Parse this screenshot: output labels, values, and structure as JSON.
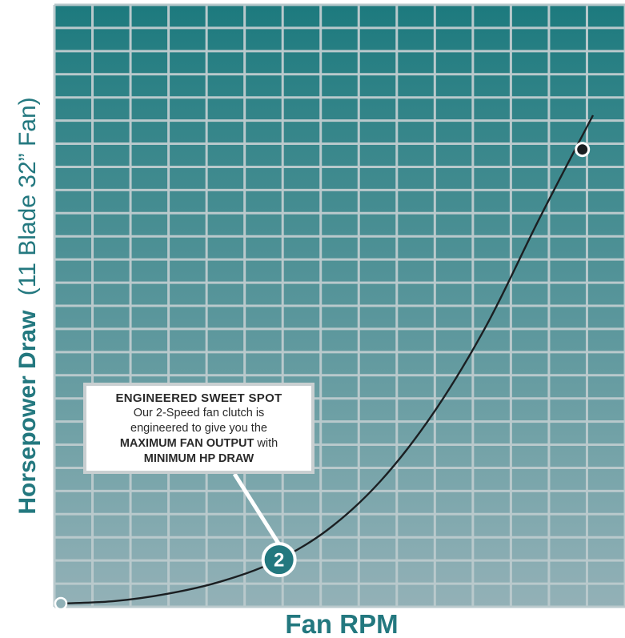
{
  "chart_data": {
    "type": "line",
    "xlabel": "Fan RPM",
    "ylabel_bold": "Horsepower Draw",
    "ylabel_regular": "(11 Blade 32” Fan)",
    "grid": true,
    "series": [
      {
        "x": [
          0.0,
          0.1,
          0.2,
          0.3,
          0.4,
          0.5,
          0.6,
          0.7,
          0.8,
          0.9,
          1.0
        ],
        "y": [
          0.0,
          0.005,
          0.02,
          0.045,
          0.085,
          0.15,
          0.25,
          0.39,
          0.57,
          0.79,
          1.0
        ]
      }
    ],
    "markers": [
      {
        "name": "start-point",
        "x": 0.0,
        "y": 0.0
      },
      {
        "name": "sweet-spot",
        "x": 0.41,
        "y": 0.09,
        "label": "2"
      },
      {
        "name": "max-point",
        "x": 0.98,
        "y": 0.93
      }
    ]
  },
  "callout": {
    "heading": "ENGINEERED SWEET SPOT",
    "line1": "Our 2-Speed fan clutch is",
    "line2": "engineered to give you the",
    "line3_bold": "MAXIMUM FAN OUTPUT",
    "line3_rest": " with",
    "line4_bold": "MINIMUM HP DRAW"
  },
  "colors": {
    "grid_top": "#1d7a7e",
    "grid_bottom": "#93b1b7",
    "title": "#23787f",
    "badge": "#23787f",
    "curve": "#1b1f22"
  }
}
